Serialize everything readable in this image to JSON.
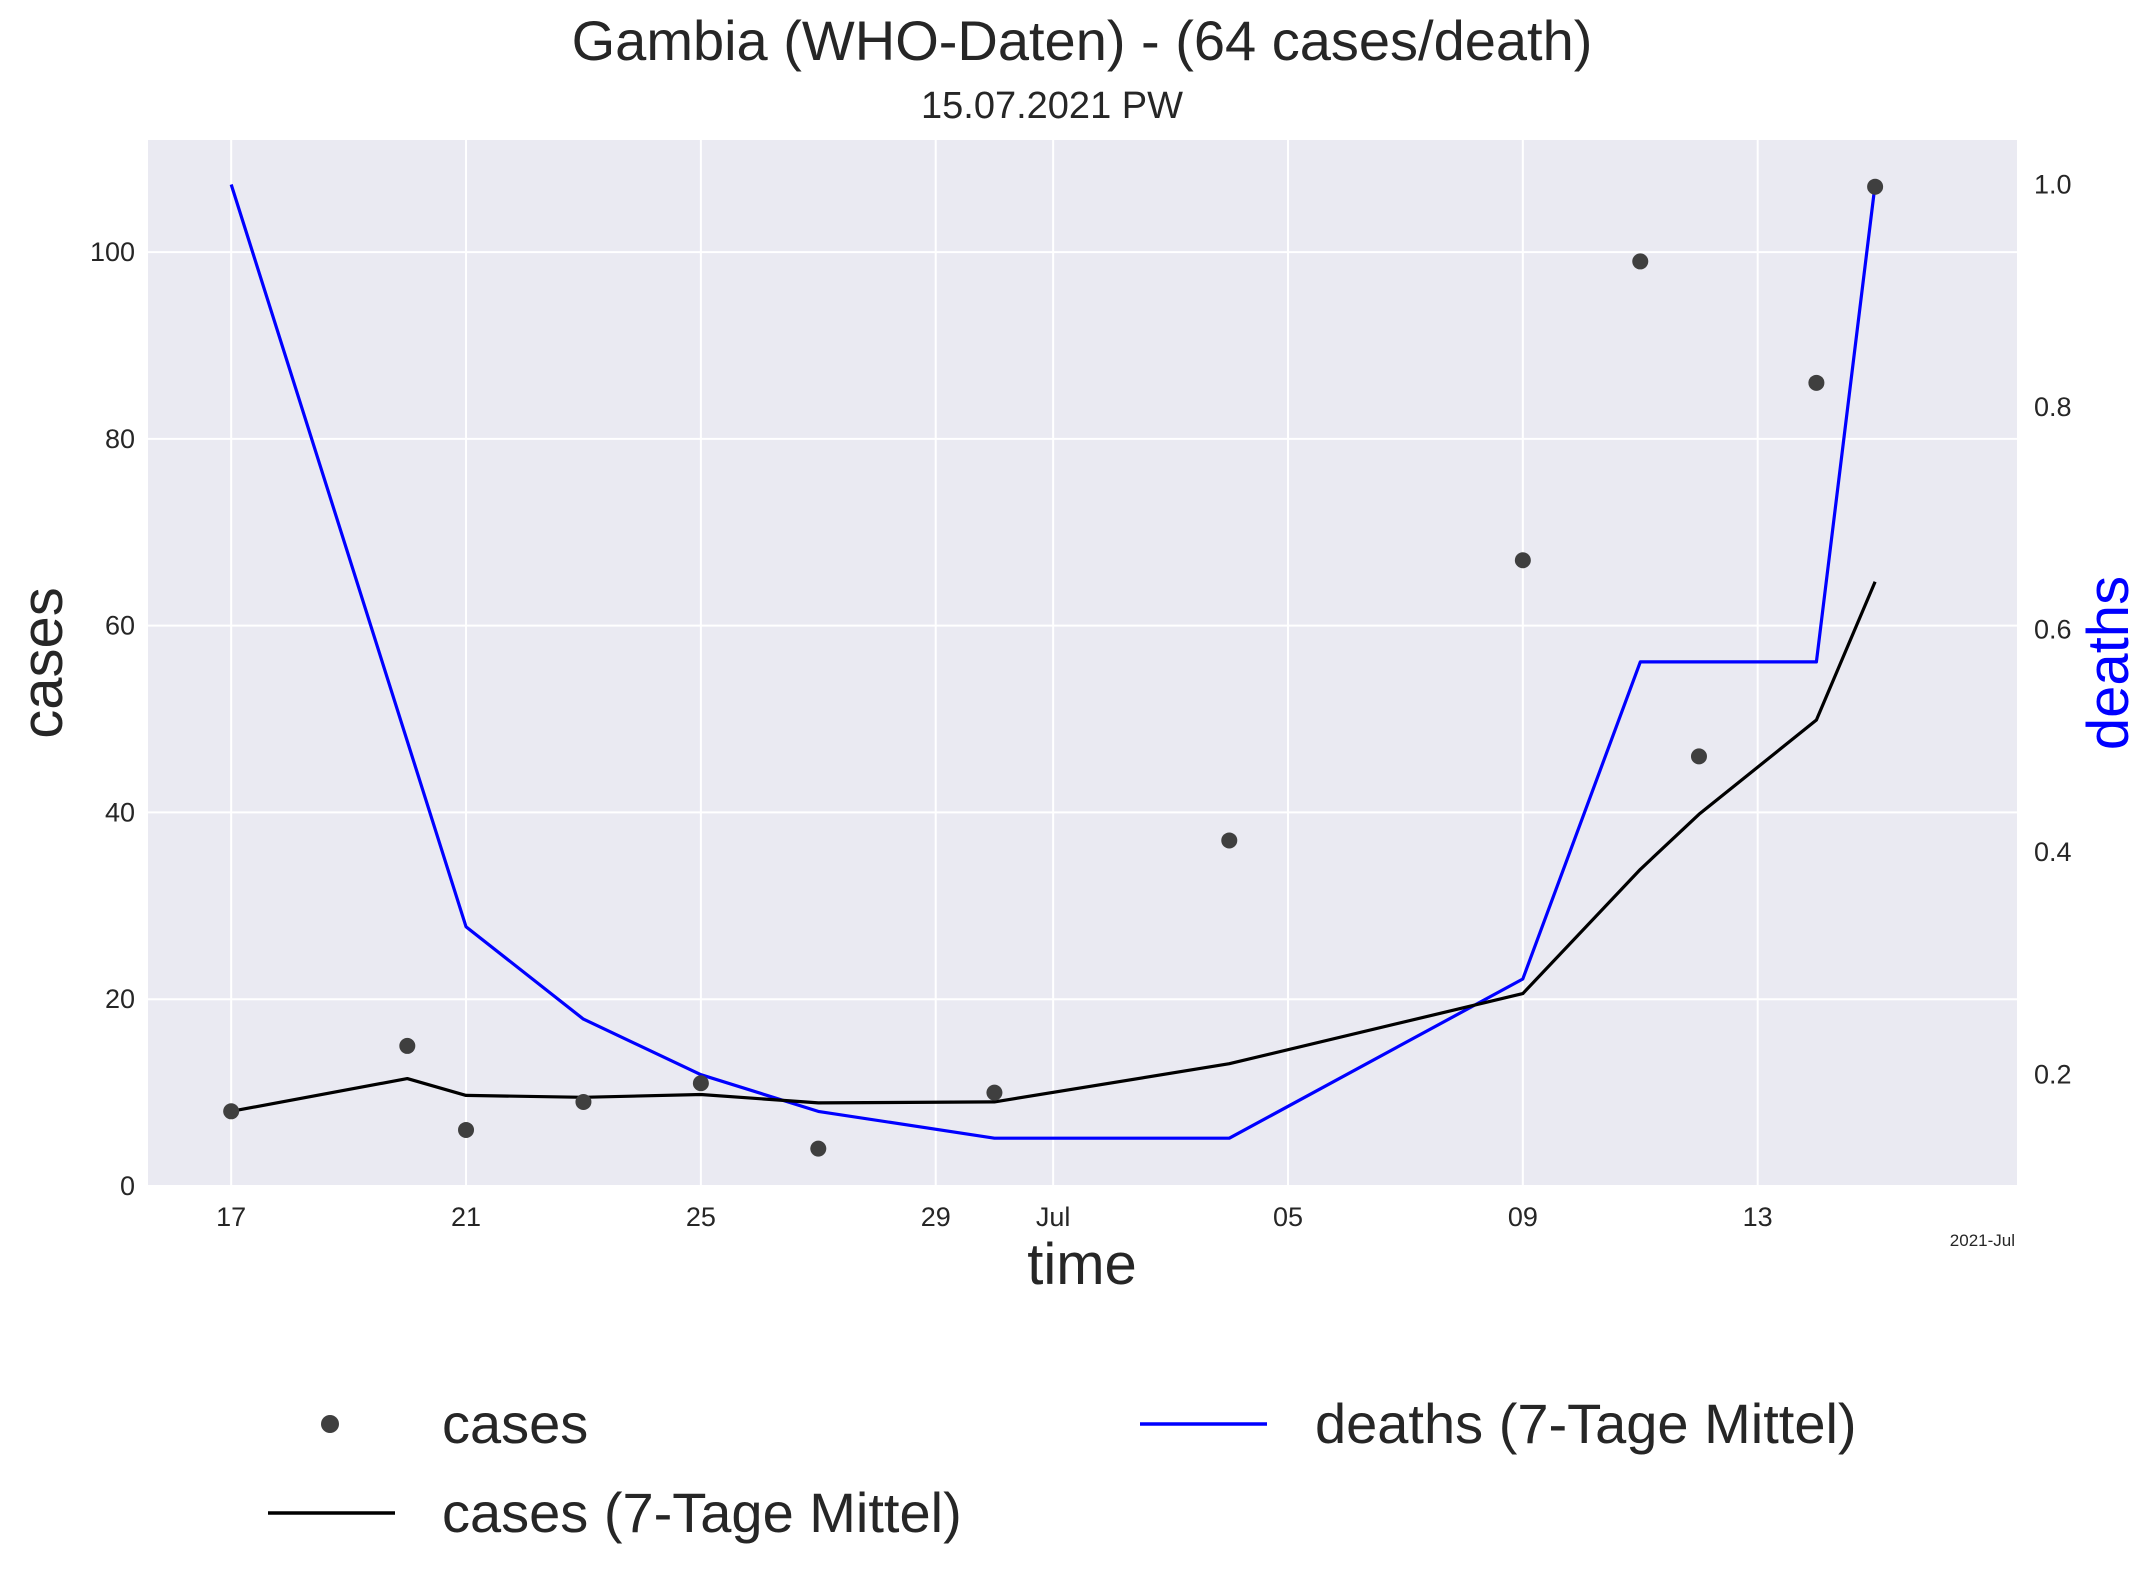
{
  "chart_data": {
    "type": "line",
    "title": "Gambia (WHO-Daten) - (64 cases/death)",
    "subtitle": "15.07.2021 PW",
    "xlabel": "time",
    "ylabel": "cases",
    "ylabel_right": "deaths",
    "x_offset_label": "2021-Jul",
    "x_range": [
      "2021-06-15T14:00",
      "2021-07-17T10:00"
    ],
    "ylim": [
      0,
      112
    ],
    "ylim_right": [
      0.1,
      1.04
    ],
    "x_ticks": [
      {
        "date": "2021-06-17",
        "label": "17"
      },
      {
        "date": "2021-06-21",
        "label": "21"
      },
      {
        "date": "2021-06-25",
        "label": "25"
      },
      {
        "date": "2021-06-29",
        "label": "29"
      },
      {
        "date": "2021-07-01",
        "label": "Jul"
      },
      {
        "date": "2021-07-05",
        "label": "05"
      },
      {
        "date": "2021-07-09",
        "label": "09"
      },
      {
        "date": "2021-07-13",
        "label": "13"
      }
    ],
    "y_ticks": [
      0,
      20,
      40,
      60,
      80,
      100
    ],
    "y_ticks_right": [
      0.2,
      0.4,
      0.6,
      0.8,
      1.0
    ],
    "grid": true,
    "legend_position": "bottom",
    "series": [
      {
        "name": "cases",
        "kind": "scatter",
        "axis": "left",
        "color": "#3f3f3f",
        "points": [
          [
            "2021-06-17",
            8
          ],
          [
            "2021-06-20",
            15
          ],
          [
            "2021-06-21",
            6
          ],
          [
            "2021-06-23",
            9
          ],
          [
            "2021-06-25",
            11
          ],
          [
            "2021-06-27",
            4
          ],
          [
            "2021-06-30",
            10
          ],
          [
            "2021-07-04",
            37
          ],
          [
            "2021-07-09",
            67
          ],
          [
            "2021-07-11",
            99
          ],
          [
            "2021-07-12",
            46
          ],
          [
            "2021-07-14",
            86
          ],
          [
            "2021-07-15",
            107
          ]
        ]
      },
      {
        "name": "cases (7-Tage Mittel)",
        "kind": "line",
        "axis": "left",
        "color": "#000000",
        "points": [
          [
            "2021-06-17",
            8
          ],
          [
            "2021-06-20",
            11.5
          ],
          [
            "2021-06-21",
            9.7
          ],
          [
            "2021-06-23",
            9.5
          ],
          [
            "2021-06-25",
            9.8
          ],
          [
            "2021-06-27",
            8.9
          ],
          [
            "2021-06-30",
            9.0
          ],
          [
            "2021-07-04",
            13.1
          ],
          [
            "2021-07-09",
            20.6
          ],
          [
            "2021-07-11",
            33.9
          ],
          [
            "2021-07-12",
            39.8
          ],
          [
            "2021-07-14",
            49.9
          ],
          [
            "2021-07-15",
            64.7
          ]
        ]
      },
      {
        "name": "deaths (7-Tage Mittel)",
        "kind": "line",
        "axis": "right",
        "color": "#0000ff",
        "points": [
          [
            "2021-06-17",
            1.0
          ],
          [
            "2021-06-21",
            0.333
          ],
          [
            "2021-06-23",
            0.25
          ],
          [
            "2021-06-25",
            0.2
          ],
          [
            "2021-06-27",
            0.167
          ],
          [
            "2021-06-30",
            0.143
          ],
          [
            "2021-07-04",
            0.143
          ],
          [
            "2021-07-09",
            0.286
          ],
          [
            "2021-07-11",
            0.571
          ],
          [
            "2021-07-14",
            0.571
          ],
          [
            "2021-07-15",
            1.0
          ]
        ]
      }
    ]
  },
  "colors": {
    "plot_background": "#eaeaf2",
    "grid": "#ffffff",
    "text": "#262626",
    "deaths_label": "#0000ff"
  }
}
